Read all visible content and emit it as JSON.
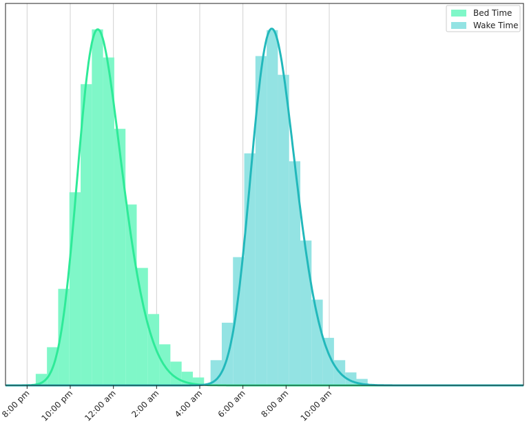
{
  "chart_data": {
    "type": "bar",
    "title": "",
    "xlabel": "",
    "ylabel": "",
    "x_unit": "hours since noon",
    "xlim": [
      7,
      31
    ],
    "ylim": [
      0,
      0.53
    ],
    "grid": "x",
    "legend_position": "top-right",
    "x_ticks": [
      {
        "value": 8,
        "label": "8:00 pm"
      },
      {
        "value": 10,
        "label": "10:00 pm"
      },
      {
        "value": 12,
        "label": "12:00 am"
      },
      {
        "value": 14,
        "label": "2:00 am"
      },
      {
        "value": 16,
        "label": "4:00 am"
      },
      {
        "value": 18,
        "label": "6:00 am"
      },
      {
        "value": 20,
        "label": "8:00 am"
      },
      {
        "value": 22,
        "label": "10:00 am"
      }
    ],
    "series": [
      {
        "name": "Bed Time",
        "bar_color": "#7ff7c8",
        "line_color": "#2eea98",
        "bins": [
          [
            8.4,
            8.92,
            0.016
          ],
          [
            8.92,
            9.44,
            0.053
          ],
          [
            9.44,
            9.96,
            0.134
          ],
          [
            9.96,
            10.48,
            0.268
          ],
          [
            10.48,
            11.0,
            0.418
          ],
          [
            11.0,
            11.52,
            0.494
          ],
          [
            11.52,
            12.04,
            0.455
          ],
          [
            12.04,
            12.56,
            0.356
          ],
          [
            12.56,
            13.08,
            0.251
          ],
          [
            13.08,
            13.6,
            0.163
          ],
          [
            13.6,
            14.12,
            0.099
          ],
          [
            14.12,
            14.64,
            0.057
          ],
          [
            14.64,
            15.16,
            0.033
          ],
          [
            15.16,
            15.68,
            0.019
          ],
          [
            15.68,
            16.2,
            0.011
          ]
        ],
        "kde_peak_x": 10.98,
        "kde_peak_y": 0.494
      },
      {
        "name": "Wake Time",
        "bar_color": "#93e3e3",
        "line_color": "#22b8bb",
        "bins": [
          [
            16.5,
            17.02,
            0.035
          ],
          [
            17.02,
            17.54,
            0.087
          ],
          [
            17.54,
            18.06,
            0.178
          ],
          [
            18.06,
            18.58,
            0.322
          ],
          [
            18.58,
            19.1,
            0.457
          ],
          [
            19.1,
            19.62,
            0.493
          ],
          [
            19.62,
            20.14,
            0.431
          ],
          [
            20.14,
            20.66,
            0.311
          ],
          [
            20.66,
            21.18,
            0.201
          ],
          [
            21.18,
            21.7,
            0.119
          ],
          [
            21.7,
            22.22,
            0.066
          ],
          [
            22.22,
            22.74,
            0.035
          ],
          [
            22.74,
            23.26,
            0.018
          ],
          [
            23.26,
            23.78,
            0.009
          ]
        ],
        "kde_peak_x": 19.08,
        "kde_peak_y": 0.495
      }
    ]
  }
}
